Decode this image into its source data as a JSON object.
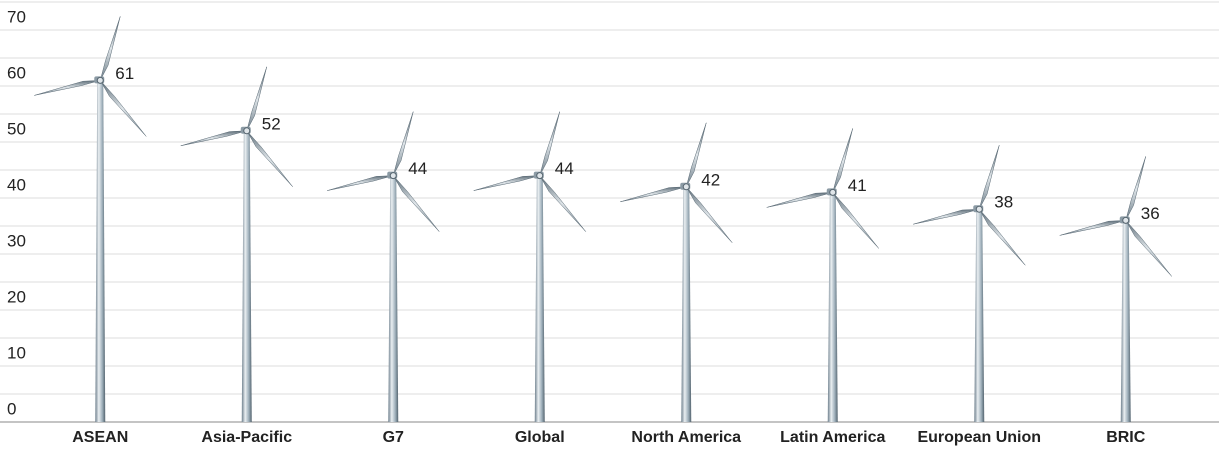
{
  "chart_data": {
    "type": "turbine",
    "categories": [
      "ASEAN",
      "Asia-Pacific",
      "G7",
      "Global",
      "North America",
      "Latin America",
      "European Union",
      "BRIC"
    ],
    "values": [
      61,
      52,
      44,
      44,
      42,
      41,
      38,
      36
    ],
    "ylim": [
      0,
      75
    ],
    "yticks": [
      0,
      10,
      20,
      30,
      40,
      50,
      60,
      70
    ],
    "minor_yticks": [
      5,
      15,
      25,
      35,
      45,
      55,
      65,
      75
    ],
    "grid": true
  }
}
